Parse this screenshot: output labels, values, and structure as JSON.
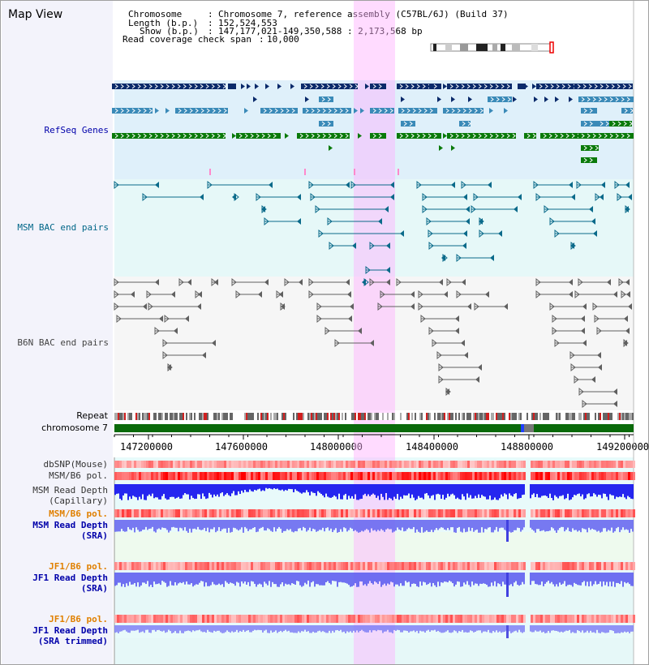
{
  "page_title": "Map View",
  "header": {
    "chromosome_label": "Chromosome",
    "chromosome_value": "Chromosome 7, reference assembly (C57BL/6J) (Build 37)",
    "length_label": "Length (b.p.)",
    "length_value": "152,524,553",
    "show_label": "Show (b.p.)",
    "show_value": "147,177,021-149,350,588 : 2,173,568 bp",
    "coverage_label": "Read coverage check span",
    "coverage_value": "10,000"
  },
  "tracks": {
    "refseq": "RefSeq Genes",
    "msm_bac": "MSM BAC end pairs",
    "b6n_bac": "B6N BAC end pairs",
    "repeat": "Repeat",
    "chromosome": "chromosome 7",
    "dbsnp": "dbSNP(Mouse)",
    "msm_b6_pol": "MSM/B6 pol.",
    "msm_read_depth_cap_1": "MSM Read Depth",
    "msm_read_depth_cap_2": "(Capillary)",
    "msm_b6_pol_sra": "MSM/B6 pol.",
    "msm_read_depth_sra_1": "MSM Read Depth",
    "msm_read_depth_sra_2": "(SRA)",
    "jf1_b6_pol": "JF1/B6 pol.",
    "jf1_read_depth_sra_1": "JF1 Read Depth",
    "jf1_read_depth_sra_2": "(SRA)",
    "jf1_b6_pol_2": "JF1/B6 pol.",
    "jf1_read_depth_trim_1": "JF1 Read Depth",
    "jf1_read_depth_trim_2": "(SRA trimmed)"
  },
  "axis_ticks": [
    "147200000",
    "147600000",
    "148000000",
    "148400000",
    "148800000",
    "149200000"
  ],
  "colors": {
    "refseq_dark": "#0a2a6a",
    "refseq_mid": "#3a8ab8",
    "refseq_green": "#0a7a0a",
    "msm_bac": "#0a6a8a",
    "b6n_bac": "#606060",
    "highlight": "#ffb0ff",
    "label_blue": "#0000aa",
    "label_orange": "#e08000",
    "label_gray": "#444444",
    "label_teal": "#006688"
  }
}
